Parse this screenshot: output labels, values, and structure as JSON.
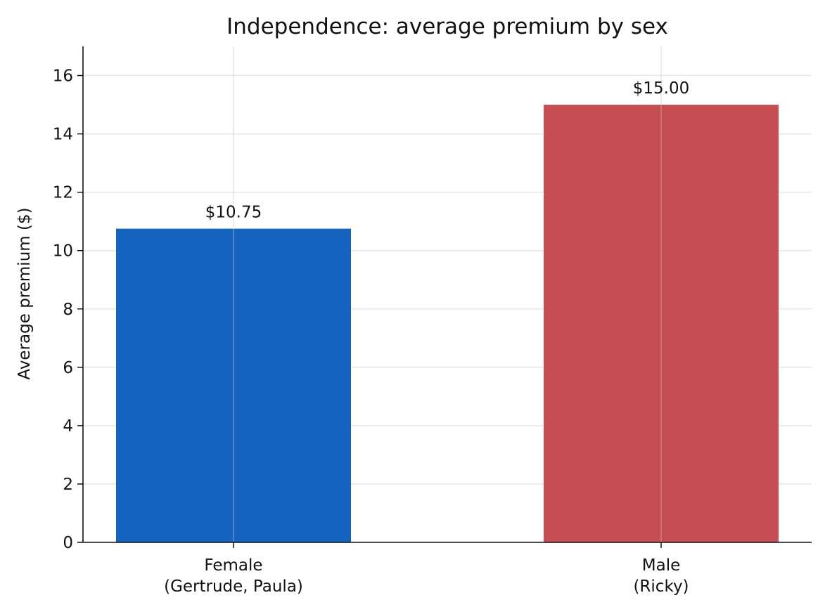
{
  "chart_data": {
    "type": "bar",
    "title": "Independence: average premium by sex",
    "xlabel": "",
    "ylabel": "Average premium ($)",
    "categories": [
      [
        "Female",
        "(Gertrude, Paula)"
      ],
      [
        "Male",
        "(Ricky)"
      ]
    ],
    "values": [
      10.75,
      15.0
    ],
    "data_labels": [
      "$10.75",
      "$15.00"
    ],
    "colors": [
      "#1565c0",
      "#c44e52"
    ],
    "ylim": [
      0,
      17
    ],
    "yticks": [
      0,
      2,
      4,
      6,
      8,
      10,
      12,
      14,
      16
    ],
    "grid": true,
    "legend": "none"
  }
}
